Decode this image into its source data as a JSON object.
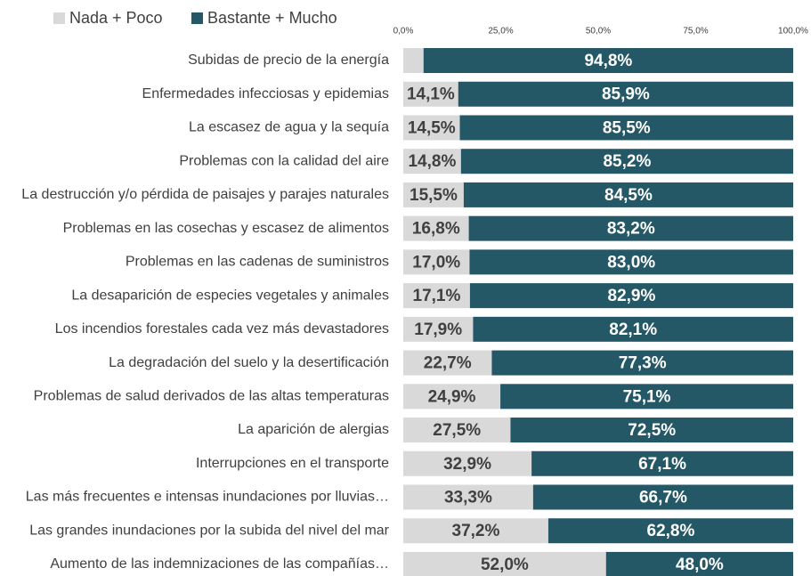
{
  "chart_data": {
    "type": "stacked-bar-horizontal",
    "categories": [
      "Subidas de precio de la energía",
      "Enfermedades infecciosas y epidemias",
      "La escasez de agua y la sequía",
      "Problemas con la calidad del aire",
      "La destrucción y/o pérdida de paisajes y parajes naturales",
      "Problemas en las cosechas y escasez de alimentos",
      "Problemas en las cadenas de suministros",
      "La desaparición de especies vegetales y animales",
      "Los incendios forestales cada vez más devastadores",
      "La degradación del suelo y la desertificación",
      "Problemas de salud derivados de las altas temperaturas",
      "La aparición de alergias",
      "Interrupciones en el transporte",
      "Las más frecuentes e intensas inundaciones por lluvias…",
      "Las grandes inundaciones por la subida del nivel del mar",
      "Aumento de las indemnizaciones de las compañías…"
    ],
    "series": [
      {
        "name": "Nada + Poco",
        "color": "#d9d9d9",
        "values": [
          5.2,
          14.1,
          14.5,
          14.8,
          15.5,
          16.8,
          17.0,
          17.1,
          17.9,
          22.7,
          24.9,
          27.5,
          32.9,
          33.3,
          37.2,
          52.0
        ],
        "value_labels": [
          null,
          "14,1%",
          "14,5%",
          "14,8%",
          "15,5%",
          "16,8%",
          "17,0%",
          "17,1%",
          "17,9%",
          "22,7%",
          "24,9%",
          "27,5%",
          "32,9%",
          "33,3%",
          "37,2%",
          "52,0%"
        ]
      },
      {
        "name": "Bastante + Mucho",
        "color": "#255866",
        "values": [
          94.8,
          85.9,
          85.5,
          85.2,
          84.5,
          83.2,
          83.0,
          82.9,
          82.1,
          77.3,
          75.1,
          72.5,
          67.1,
          66.7,
          62.8,
          48.0
        ],
        "value_labels": [
          "94,8%",
          "85,9%",
          "85,5%",
          "85,2%",
          "84,5%",
          "83,2%",
          "83,0%",
          "82,9%",
          "82,1%",
          "77,3%",
          "75,1%",
          "72,5%",
          "67,1%",
          "66,7%",
          "62,8%",
          "48,0%"
        ]
      }
    ],
    "xlim": [
      0,
      100
    ],
    "xticks": [
      {
        "value": 0,
        "label": "0,0%"
      },
      {
        "value": 25,
        "label": "25,0%"
      },
      {
        "value": 50,
        "label": "50,0%"
      },
      {
        "value": 75,
        "label": "75,0%"
      },
      {
        "value": 100,
        "label": "100,0%"
      }
    ],
    "legend": "top-left"
  }
}
